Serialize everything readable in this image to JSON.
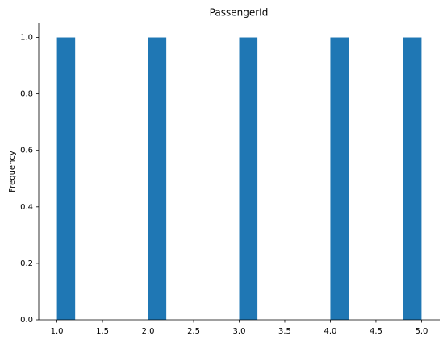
{
  "chart_data": {
    "type": "histogram",
    "title": "PassengerId",
    "y_label": "Frequency",
    "bins": [
      1.0,
      1.2,
      1.4,
      1.6,
      1.8,
      2.0,
      2.2,
      2.4,
      2.6,
      2.8,
      3.0,
      3.2,
      3.4,
      3.6,
      3.8,
      4.0,
      4.2,
      4.4,
      4.6,
      4.8,
      5.0
    ],
    "values": [
      1,
      0,
      0,
      0,
      0,
      1,
      0,
      0,
      0,
      0,
      1,
      0,
      0,
      0,
      0,
      1,
      0,
      0,
      0,
      1
    ],
    "color": "#1f77b4",
    "xlim": [
      0.8,
      5.2
    ],
    "xticks": [
      {
        "value": 1.0,
        "label": "1.0"
      },
      1.5,
      {
        "value": 2.0,
        "label": "2.0"
      },
      2.5,
      {
        "value": 3.0,
        "label": "3.0"
      },
      3.5,
      {
        "value": 4.0,
        "label": "4.0"
      },
      4.5,
      {
        "value": 5.0,
        "label": "5.0"
      }
    ],
    "ylim": [
      0,
      1.05
    ],
    "yticks": [
      {
        "value": 0,
        "label": "0.0"
      },
      0.2,
      0.4,
      0.6,
      0.8,
      {
        "value": 1,
        "label": "1.0"
      }
    ]
  }
}
